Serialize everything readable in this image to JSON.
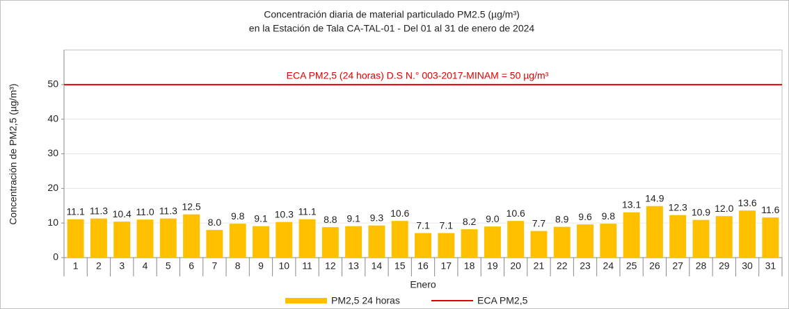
{
  "chart_data": {
    "type": "bar",
    "title": [
      "Concentración diaria de material particulado PM2.5 (µg/m³)",
      "en la Estación de Tala CA-TAL-01  - Del 01 al 31 de enero de 2024"
    ],
    "x_label": "Enero",
    "y_label": "Concentración de PM2,5 (µg/m³)",
    "categories": [
      "1",
      "2",
      "3",
      "4",
      "5",
      "6",
      "7",
      "8",
      "9",
      "10",
      "11",
      "12",
      "13",
      "14",
      "15",
      "16",
      "17",
      "18",
      "19",
      "20",
      "21",
      "22",
      "23",
      "24",
      "25",
      "26",
      "27",
      "28",
      "29",
      "30",
      "31"
    ],
    "series": [
      {
        "name": "PM2,5 24 horas",
        "color": "#ffc000",
        "values": [
          11.1,
          11.3,
          10.4,
          11.0,
          11.3,
          12.5,
          8.0,
          9.8,
          9.1,
          10.3,
          11.1,
          8.8,
          9.1,
          9.3,
          10.6,
          7.1,
          7.1,
          8.2,
          9.0,
          10.6,
          7.7,
          8.9,
          9.6,
          9.8,
          13.1,
          14.9,
          12.3,
          10.9,
          12.0,
          13.6,
          11.6
        ],
        "value_labels": [
          "11.1",
          "11.3",
          "10.4",
          "11.0",
          "11.3",
          "12.5",
          "8.0",
          "9.8",
          "9.1",
          "10.3",
          "11.1",
          "8.8",
          "9.1",
          "9.3",
          "10.6",
          "7.1",
          "7.1",
          "8.2",
          "9.0",
          "10.6",
          "7.7",
          "8.9",
          "9.6",
          "9.8",
          "13.1",
          "14.9",
          "12.3",
          "10.9",
          "12.0",
          "13.6",
          "11.6"
        ]
      }
    ],
    "reference_line": {
      "name": "ECA PM2,5",
      "value": 50,
      "color": "#e00000",
      "label": "ECA PM2,5 (24 horas) D.S N.° 003-2017-MINAM  = 50 µg/m³"
    },
    "ylim": [
      0,
      60
    ],
    "yticks": [
      0,
      10,
      20,
      30,
      40,
      50
    ],
    "grid": true
  }
}
